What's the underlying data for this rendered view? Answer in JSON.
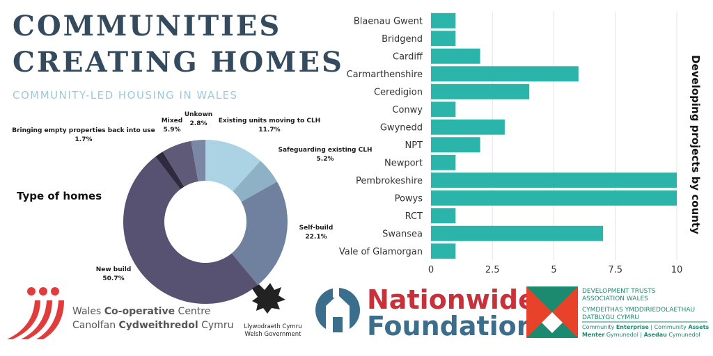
{
  "header": {
    "title_line1": "COMMUNITIES",
    "title_line2": "CREATING HOMES",
    "subtitle": "COMMUNITY-LED HOUSING IN WALES"
  },
  "colors": {
    "title": "#344a5e",
    "subtitle": "#9cc9dd",
    "bars": "#2bb5aa",
    "donut": [
      "#abd3e3",
      "#8fb1c6",
      "#6f819e",
      "#575272",
      "#2f2a3e",
      "#5f5a78",
      "#7a88a6"
    ]
  },
  "chart_data": [
    {
      "type": "pie",
      "title": "Type of homes",
      "donut": true,
      "slices": [
        {
          "label": "Existing units moving to CLH",
          "value": 11.7,
          "value_label": "11.7%"
        },
        {
          "label": "Safeguarding existing CLH",
          "value": 5.2,
          "value_label": "5.2%"
        },
        {
          "label": "Self-build",
          "value": 22.1,
          "value_label": "22.1%"
        },
        {
          "label": "New build",
          "value": 50.7,
          "value_label": "50.7%"
        },
        {
          "label": "Bringing empty properties back into use",
          "value": 1.7,
          "value_label": "1.7%"
        },
        {
          "label": "Mixed",
          "value": 5.9,
          "value_label": "5.9%"
        },
        {
          "label": "Unkown",
          "value": 2.8,
          "value_label": "2.8%"
        }
      ]
    },
    {
      "type": "bar",
      "orientation": "horizontal",
      "ylabel": "Developing projects by county",
      "categories": [
        "Blaenau Gwent",
        "Bridgend",
        "Cardiff",
        "Carmarthenshire",
        "Ceredigion",
        "Conwy",
        "Gwynedd",
        "NPT",
        "Newport",
        "Pembrokeshire",
        "Powys",
        "RCT",
        "Swansea",
        "Vale of Glamorgan"
      ],
      "values": [
        1,
        1,
        2,
        6,
        4,
        1,
        3,
        2,
        1,
        10,
        10,
        1,
        7,
        1
      ],
      "xlim": [
        0,
        10
      ],
      "xticks": [
        0,
        2.5,
        5,
        7.5,
        10
      ],
      "xtick_labels": [
        "0",
        "2.5",
        "5",
        "7.5",
        "10"
      ],
      "grid": "vertical",
      "legend": "none"
    }
  ],
  "logos": {
    "wcc_line1_a": "Wales ",
    "wcc_line1_b": "Co-operative",
    "wcc_line1_c": " Centre",
    "wcc_line2_a": "Canolfan ",
    "wcc_line2_b": "Cydweithredol",
    "wcc_line2_c": " Cymru",
    "gov_line1": "Llywodraeth Cymru",
    "gov_line2": "Welsh Government",
    "nw_line1": "Nationwide",
    "nw_line2": "Foundation",
    "dtaw_line1": "DEVELOPMENT TRUSTS",
    "dtaw_line2": "ASSOCIATION WALES",
    "dtaw_line3": "CYMDEITHAS YMDDIRIEDOLAETHAU",
    "dtaw_line4": "DATBLYGU CYMRU",
    "dtaw_line5_a": "Community ",
    "dtaw_line5_b": "Enterprise",
    "dtaw_line5_c": " | Community ",
    "dtaw_line5_d": "Assets",
    "dtaw_line6_a": "Menter",
    "dtaw_line6_b": " Gymunedol | ",
    "dtaw_line6_c": "Asedau",
    "dtaw_line6_d": " Cymunedol"
  }
}
